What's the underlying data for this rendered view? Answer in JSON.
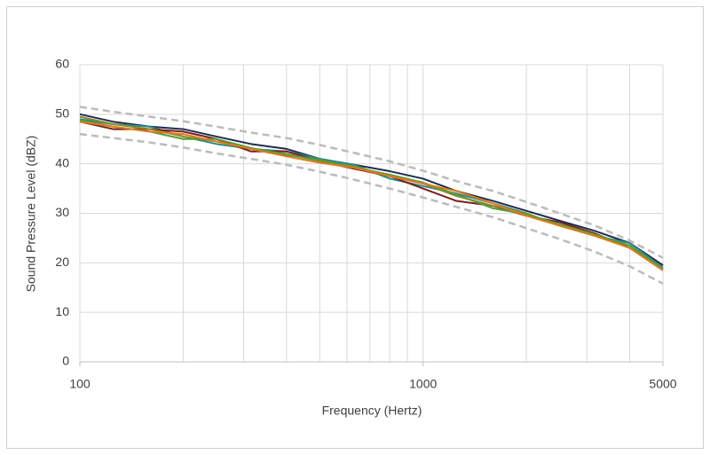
{
  "chart_data": {
    "type": "line",
    "xlabel": "Frequency (Hertz)",
    "ylabel": "Sound Pressure Level (dBZ)",
    "xscale": "log",
    "xlim": [
      100,
      5000
    ],
    "xticks": [
      100,
      1000,
      5000
    ],
    "xgrid": [
      100,
      200,
      300,
      400,
      500,
      600,
      700,
      800,
      900,
      1000,
      2000,
      3000,
      4000,
      5000
    ],
    "ylim": [
      0,
      60
    ],
    "yticks": [
      0,
      10,
      20,
      30,
      40,
      50,
      60
    ],
    "grid": true,
    "x": [
      100,
      125,
      160,
      200,
      250,
      315,
      400,
      500,
      630,
      800,
      1000,
      1250,
      1600,
      2000,
      2500,
      3150,
      4000,
      5000
    ],
    "series": [
      {
        "color": "#bbbbbb",
        "style": "dashed",
        "values": [
          51.5,
          50.5,
          49.5,
          48.6,
          47.5,
          46.3,
          45.2,
          43.8,
          42.2,
          40.5,
          38.6,
          36.5,
          34.5,
          32.3,
          30,
          27.6,
          24.5,
          21
        ]
      },
      {
        "color": "#bbbbbb",
        "style": "dashed",
        "values": [
          46,
          45.2,
          44.3,
          43.3,
          42.1,
          41,
          39.8,
          38.4,
          36.8,
          35,
          33.2,
          31.3,
          29.2,
          27,
          24.8,
          22.3,
          19.3,
          15.8
        ]
      },
      {
        "color": "#1f2d4e",
        "style": "solid",
        "values": [
          50,
          48.5,
          47.5,
          47,
          45.5,
          44,
          43,
          41,
          39.8,
          38.5,
          37,
          34.5,
          32.5,
          30.5,
          28.5,
          26.5,
          24,
          19.5
        ]
      },
      {
        "color": "#2a8a8a",
        "style": "solid",
        "values": [
          49,
          48,
          47.5,
          45.5,
          44,
          43,
          42.5,
          41,
          39.8,
          37,
          35.5,
          34,
          32,
          30,
          27.5,
          25.5,
          24,
          19
        ]
      },
      {
        "color": "#7a1f1f",
        "style": "solid",
        "values": [
          48.5,
          47,
          47,
          46.5,
          45,
          42.5,
          42.5,
          40.5,
          39,
          37.5,
          35,
          32.5,
          31.5,
          29.5,
          28.2,
          26,
          23,
          18.5
        ]
      },
      {
        "color": "#8a8a2a",
        "style": "solid",
        "values": [
          49.5,
          48,
          47,
          45.5,
          44.5,
          43,
          42,
          40.5,
          39.5,
          37.5,
          36,
          33.5,
          31.5,
          30,
          27.5,
          25.5,
          23.5,
          18.5
        ]
      },
      {
        "color": "#5a9a3a",
        "style": "solid",
        "values": [
          48.8,
          47.5,
          46.5,
          45,
          45,
          43.2,
          41.8,
          40.8,
          39.3,
          37.8,
          36.2,
          33.8,
          31,
          29.8,
          27.8,
          25.8,
          23.5,
          18.8
        ]
      },
      {
        "color": "#e07b1a",
        "style": "solid",
        "values": [
          48.5,
          47.5,
          46.5,
          46,
          44.5,
          43,
          41.5,
          40.2,
          39.2,
          37.5,
          36,
          34.5,
          32,
          29.5,
          27.5,
          25.5,
          23,
          18.5
        ]
      }
    ]
  }
}
